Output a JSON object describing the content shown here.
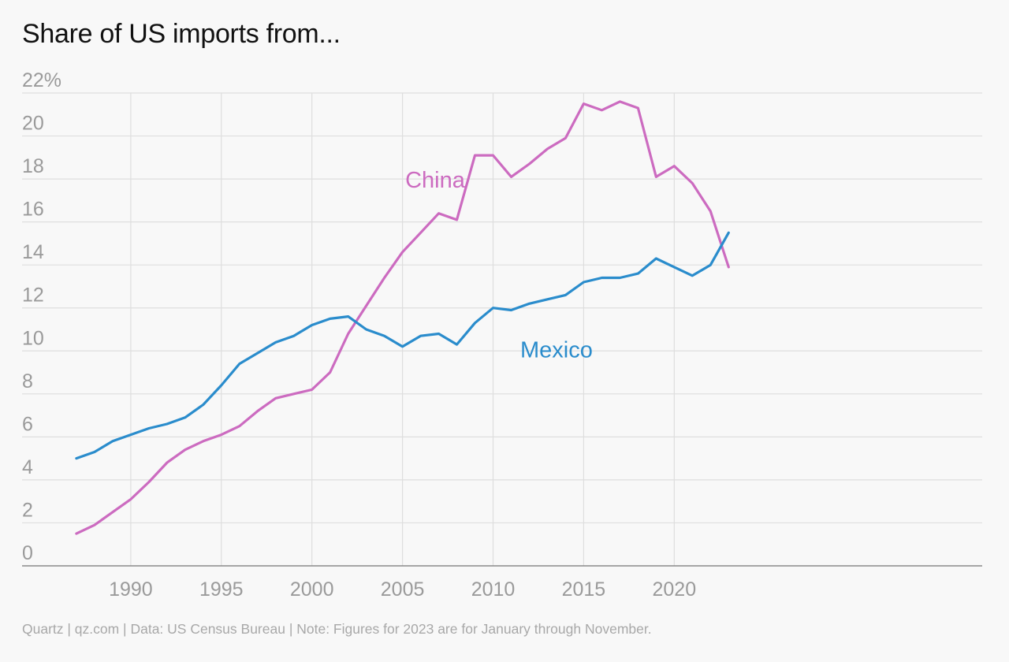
{
  "chart_data": {
    "type": "line",
    "title": "Share of US imports from...",
    "source": "Quartz | qz.com | Data: US Census Bureau | Note: Figures for 2023 are for January through November.",
    "x": [
      1987,
      1988,
      1989,
      1990,
      1991,
      1992,
      1993,
      1994,
      1995,
      1996,
      1997,
      1998,
      1999,
      2000,
      2001,
      2002,
      2003,
      2004,
      2005,
      2006,
      2007,
      2008,
      2009,
      2010,
      2011,
      2012,
      2013,
      2014,
      2015,
      2016,
      2017,
      2018,
      2019,
      2020,
      2021,
      2022,
      2023
    ],
    "xlim": [
      1984,
      2037
    ],
    "ylim": [
      0,
      22
    ],
    "y_ticks": [
      {
        "value": 22,
        "label": "22%"
      },
      {
        "value": 20,
        "label": "20"
      },
      {
        "value": 18,
        "label": "18"
      },
      {
        "value": 16,
        "label": "16"
      },
      {
        "value": 14,
        "label": "14"
      },
      {
        "value": 12,
        "label": "12"
      },
      {
        "value": 10,
        "label": "10"
      },
      {
        "value": 8,
        "label": "8"
      },
      {
        "value": 6,
        "label": "6"
      },
      {
        "value": 4,
        "label": "4"
      },
      {
        "value": 2,
        "label": "2"
      },
      {
        "value": 0,
        "label": "0"
      }
    ],
    "x_ticks": [
      {
        "value": 1990,
        "label": "1990"
      },
      {
        "value": 1995,
        "label": "1995"
      },
      {
        "value": 2000,
        "label": "2000"
      },
      {
        "value": 2005,
        "label": "2005"
      },
      {
        "value": 2010,
        "label": "2010"
      },
      {
        "value": 2015,
        "label": "2015"
      },
      {
        "value": 2020,
        "label": "2020"
      }
    ],
    "grid": true,
    "series": [
      {
        "name": "China",
        "color": "#cc6bc0",
        "label_anchor": {
          "x": 2006.8,
          "y": 17.6
        },
        "values": [
          1.5,
          1.9,
          2.5,
          3.1,
          3.9,
          4.8,
          5.4,
          5.8,
          6.1,
          6.5,
          7.2,
          7.8,
          8.0,
          8.2,
          9.0,
          10.8,
          12.1,
          13.4,
          14.6,
          15.5,
          16.4,
          16.1,
          19.1,
          19.1,
          18.1,
          18.7,
          19.4,
          19.9,
          21.5,
          21.2,
          21.6,
          21.3,
          18.1,
          18.6,
          17.8,
          16.5,
          13.9
        ]
      },
      {
        "name": "Mexico",
        "color": "#2a8ccc",
        "label_anchor": {
          "x": 2013.5,
          "y": 9.7
        },
        "values": [
          5.0,
          5.3,
          5.8,
          6.1,
          6.4,
          6.6,
          6.9,
          7.5,
          8.4,
          9.4,
          9.9,
          10.4,
          10.7,
          11.2,
          11.5,
          11.6,
          11.0,
          10.7,
          10.2,
          10.7,
          10.8,
          10.3,
          11.3,
          12.0,
          11.9,
          12.2,
          12.4,
          12.6,
          13.2,
          13.4,
          13.4,
          13.6,
          14.3,
          13.9,
          13.5,
          14.0,
          15.5
        ]
      }
    ]
  }
}
